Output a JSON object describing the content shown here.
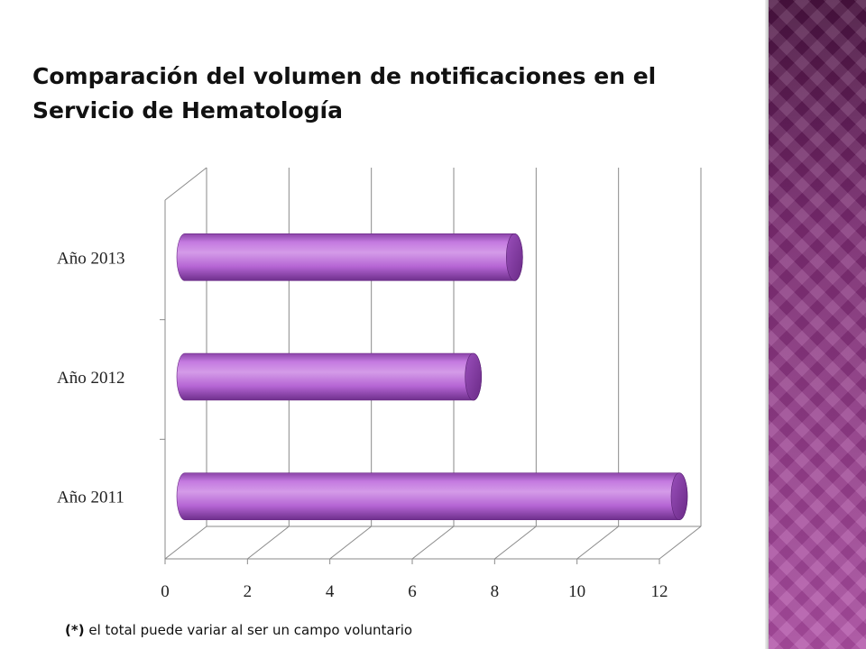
{
  "slide": {
    "title": "Comparación del volumen de notificaciones en el Servicio de Hematología",
    "footnote_marker": "(*)",
    "footnote_text": "el total puede variar al ser un campo voluntario"
  },
  "colors": {
    "bar_main": "#b565d4",
    "bar_light": "#d49be8",
    "bar_dark": "#7e3a9c",
    "side_band": "#7a2f73"
  },
  "chart_data": {
    "type": "bar",
    "orientation": "horizontal",
    "style": "3d-cylinder",
    "categories": [
      "Año 2011",
      "Año 2012",
      "Año 2013"
    ],
    "values": [
      12,
      7,
      8
    ],
    "x_ticks": [
      "0",
      "2",
      "4",
      "6",
      "8",
      "10",
      "12"
    ],
    "xlim": [
      0,
      12
    ],
    "title": "",
    "xlabel": "",
    "ylabel": "",
    "grid": true,
    "legend": "none"
  }
}
